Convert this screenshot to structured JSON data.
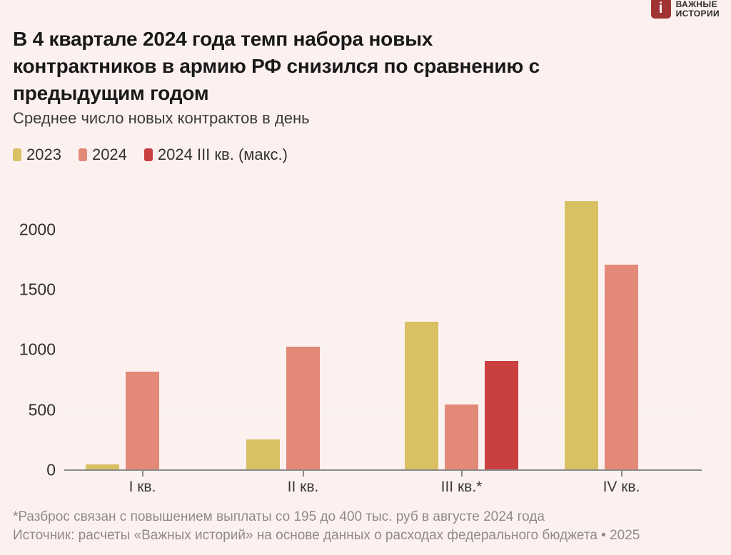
{
  "logo": {
    "icon": "i",
    "lines": [
      "ВАЖНЫЕ",
      "ИСТОРИИ"
    ]
  },
  "header": {
    "title_lines": [
      "В 4 квартале 2024 года темп набора новых",
      "контрактников в армию РФ снизился по сравнению с",
      "предыдущим годом"
    ],
    "subtitle": "Среднее число новых контрактов в день"
  },
  "chart_data": {
    "type": "bar",
    "title": "Среднее число новых контрактов в день",
    "categories": [
      "I кв.",
      "II кв.",
      "III кв.*",
      "IV кв."
    ],
    "series": [
      {
        "name": "2023",
        "color": "#d8c063",
        "values": [
          40,
          250,
          1230,
          2230
        ]
      },
      {
        "name": "2024",
        "color": "#e28977",
        "values": [
          810,
          1020,
          540,
          1700
        ]
      },
      {
        "name": "2024 III кв. (макс.)",
        "color": "#ca4040",
        "values": [
          null,
          null,
          900,
          null
        ]
      }
    ],
    "y_ticks": [
      0,
      500,
      1000,
      1500,
      2000
    ],
    "ylim": [
      0,
      2250
    ],
    "grid": "horizontal",
    "legend_position": "top-left"
  },
  "footer": {
    "note": "*Разброс связан с повышением выплаты со 195 до 400 тыс. руб в августе 2024 года",
    "source": "Источник: расчеты «Важных историй» на основе данных о расходах федерального бюджета • 2025"
  },
  "colors": {
    "background": "#fdf1f0",
    "logo_red": "#a03333",
    "axis_gray": "#8a8a8a"
  }
}
